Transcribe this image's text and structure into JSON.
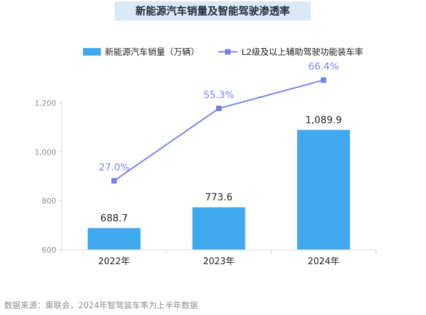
{
  "chart_data": {
    "type": "bar",
    "title": "新能源汽车销量及智能驾驶渗透率",
    "categories": [
      "2022年",
      "2023年",
      "2024年"
    ],
    "series": [
      {
        "name": "新能源汽车销量（万辆）",
        "type": "bar",
        "values": [
          688.7,
          773.6,
          1089.9
        ],
        "labels": [
          "688.7",
          "773.6",
          "1,089.9"
        ],
        "color": "#3fa9ef"
      },
      {
        "name": "L2级及以上辅助驾驶功能装车率",
        "type": "line",
        "values": [
          27.0,
          55.3,
          66.4
        ],
        "labels": [
          "27.0%",
          "55.3%",
          "66.4%"
        ],
        "color": "#7b7fe8"
      }
    ],
    "y_axis": {
      "ticks": [
        600,
        800,
        1000,
        1200
      ],
      "tick_labels": [
        "600",
        "800",
        "1,000",
        "1,200"
      ],
      "ylim": [
        600,
        1200
      ]
    },
    "y2_axis": {
      "hidden": true,
      "ylim": [
        0,
        80
      ]
    },
    "legend": "top-right",
    "grid": false,
    "source": "数据来源：乘联会，2024年智驾装车率为上半年数据"
  }
}
